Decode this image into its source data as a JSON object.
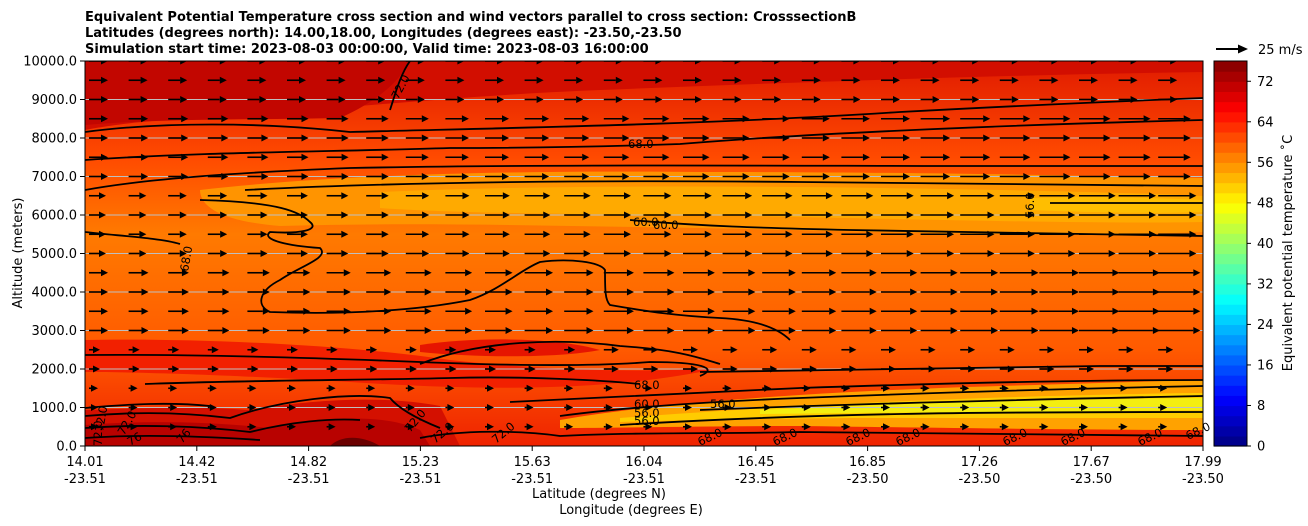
{
  "chart_data": {
    "type": "heatmap",
    "title_lines": [
      "Equivalent Potential Temperature cross section and wind vectors parallel to cross section: CrosssectionB",
      "Latitudes (degrees north): 14.00,18.00, Longitudes (degrees east): -23.50,-23.50",
      "Simulation start time: 2023-08-03 00:00:00, Valid time: 2023-08-03 16:00:00"
    ],
    "ylabel": "Altitude (meters)",
    "xlabel_lat": "Latitude (degrees N)",
    "xlabel_lon": "Longitude (degrees E)",
    "ylim": [
      0,
      10000
    ],
    "y_ticks": [
      "0.0",
      "1000.0",
      "2000.0",
      "3000.0",
      "4000.0",
      "5000.0",
      "6000.0",
      "7000.0",
      "8000.0",
      "9000.0",
      "10000.0"
    ],
    "x_ticks": [
      {
        "lat": "14.01",
        "lon": "-23.51",
        "pos": 0.0
      },
      {
        "lat": "14.42",
        "lon": "-23.51",
        "pos": 0.1
      },
      {
        "lat": "14.82",
        "lon": "-23.51",
        "pos": 0.2
      },
      {
        "lat": "15.23",
        "lon": "-23.51",
        "pos": 0.3
      },
      {
        "lat": "15.63",
        "lon": "-23.51",
        "pos": 0.4
      },
      {
        "lat": "16.04",
        "lon": "-23.51",
        "pos": 0.5
      },
      {
        "lat": "16.45",
        "lon": "-23.51",
        "pos": 0.6
      },
      {
        "lat": "16.85",
        "lon": "-23.50",
        "pos": 0.7
      },
      {
        "lat": "17.26",
        "lon": "-23.50",
        "pos": 0.8
      },
      {
        "lat": "17.67",
        "lon": "-23.50",
        "pos": 0.9
      },
      {
        "lat": "17.99",
        "lon": "-23.50",
        "pos": 1.0
      }
    ],
    "colorbar": {
      "label": "Equivalent potential temperature ˚C",
      "ticks": [
        "0",
        "8",
        "16",
        "24",
        "32",
        "40",
        "48",
        "56",
        "64",
        "72"
      ],
      "min": 0,
      "max": 76,
      "colormap": "jet"
    },
    "contour_labels": [
      "72.0",
      "68.0",
      "60.0",
      "60.0",
      "56.0",
      "68.0",
      "68.0",
      "60.0",
      "56.0",
      "56.0",
      "56.0",
      "72.0",
      "72.0",
      "72.0",
      "72.0",
      "76",
      "76",
      "72.0",
      "72.0",
      "68.0",
      "68.0",
      "68.0",
      "68.0",
      "68.0",
      "68.0",
      "68.0",
      "68.0"
    ],
    "vector_key": "25 m/s",
    "colors": {
      "background": "#ffffff",
      "grid": "#bfbfbf",
      "contour": "#000000"
    }
  }
}
